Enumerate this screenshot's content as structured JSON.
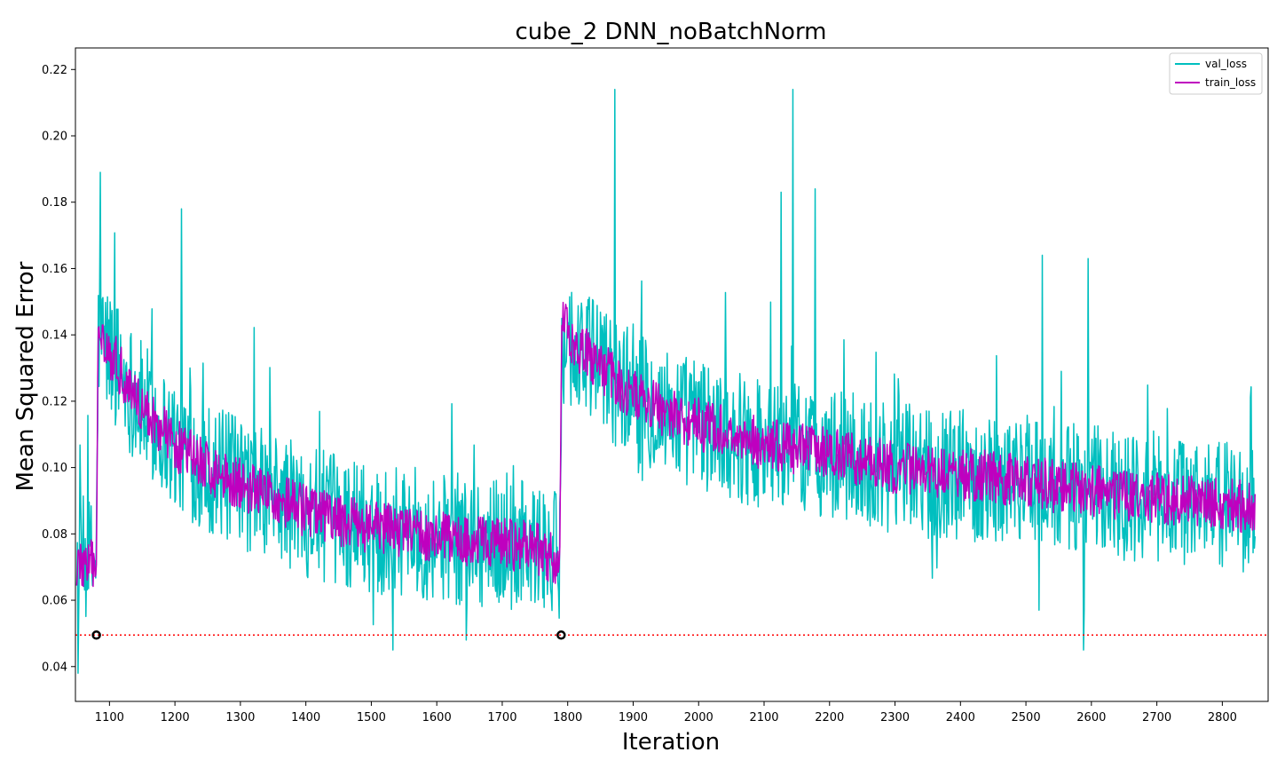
{
  "chart_data": {
    "type": "line",
    "title": "cube_2 DNN_noBatchNorm",
    "xlabel": "Iteration",
    "ylabel": "Mean Squared Error",
    "xlim": [
      1048,
      2870
    ],
    "ylim": [
      0.0295,
      0.2265
    ],
    "xticks": [
      1100,
      1200,
      1300,
      1400,
      1500,
      1600,
      1700,
      1800,
      1900,
      2000,
      2100,
      2200,
      2300,
      2400,
      2500,
      2600,
      2700,
      2800
    ],
    "yticks": [
      0.04,
      0.06,
      0.08,
      0.1,
      0.12,
      0.14,
      0.16,
      0.18,
      0.2,
      0.22
    ],
    "ytick_labels": [
      "0.04",
      "0.06",
      "0.08",
      "0.10",
      "0.12",
      "0.14",
      "0.16",
      "0.18",
      "0.20",
      "0.22"
    ],
    "legend_position": "top-right",
    "grid": false,
    "series": [
      {
        "name": "val_loss",
        "color": "#00bfbf",
        "x": [
          1050,
          1080,
          1083,
          1100,
          1150,
          1200,
          1250,
          1300,
          1350,
          1400,
          1450,
          1500,
          1550,
          1600,
          1650,
          1700,
          1750,
          1788,
          1791,
          1800,
          1850,
          1900,
          1950,
          2000,
          2050,
          2100,
          2150,
          2200,
          2250,
          2300,
          2350,
          2400,
          2450,
          2500,
          2550,
          2600,
          2650,
          2700,
          2750,
          2800,
          2850
        ],
        "y": [
          0.072,
          0.071,
          0.14,
          0.135,
          0.118,
          0.107,
          0.1,
          0.095,
          0.091,
          0.087,
          0.084,
          0.082,
          0.081,
          0.079,
          0.078,
          0.077,
          0.076,
          0.072,
          0.14,
          0.138,
          0.13,
          0.122,
          0.117,
          0.113,
          0.11,
          0.107,
          0.106,
          0.104,
          0.102,
          0.1,
          0.099,
          0.098,
          0.097,
          0.096,
          0.094,
          0.093,
          0.092,
          0.091,
          0.09,
          0.089,
          0.088
        ],
        "noise_amplitude": 0.02,
        "peaks": [
          {
            "x": 1086,
            "y": 0.189
          },
          {
            "x": 1210,
            "y": 0.178
          },
          {
            "x": 1872,
            "y": 0.214
          },
          {
            "x": 2144,
            "y": 0.214
          },
          {
            "x": 2178,
            "y": 0.184
          },
          {
            "x": 2126,
            "y": 0.183
          },
          {
            "x": 2525,
            "y": 0.164
          },
          {
            "x": 2595,
            "y": 0.163
          }
        ],
        "dips": [
          {
            "x": 1052,
            "y": 0.038
          },
          {
            "x": 1533,
            "y": 0.045
          },
          {
            "x": 1645,
            "y": 0.048
          },
          {
            "x": 2588,
            "y": 0.045
          },
          {
            "x": 2520,
            "y": 0.057
          }
        ]
      },
      {
        "name": "train_loss",
        "color": "#bf00bf",
        "x": [
          1050,
          1080,
          1083,
          1100,
          1150,
          1200,
          1250,
          1300,
          1350,
          1400,
          1450,
          1500,
          1550,
          1600,
          1650,
          1700,
          1750,
          1788,
          1791,
          1800,
          1850,
          1900,
          1950,
          2000,
          2050,
          2100,
          2150,
          2200,
          2250,
          2300,
          2350,
          2400,
          2450,
          2500,
          2550,
          2600,
          2650,
          2700,
          2750,
          2800,
          2850
        ],
        "y": [
          0.071,
          0.07,
          0.145,
          0.135,
          0.118,
          0.107,
          0.1,
          0.095,
          0.091,
          0.087,
          0.084,
          0.082,
          0.081,
          0.079,
          0.078,
          0.077,
          0.076,
          0.071,
          0.145,
          0.14,
          0.13,
          0.122,
          0.117,
          0.113,
          0.11,
          0.107,
          0.106,
          0.104,
          0.102,
          0.1,
          0.099,
          0.098,
          0.097,
          0.096,
          0.094,
          0.093,
          0.092,
          0.091,
          0.09,
          0.089,
          0.088
        ],
        "noise_amplitude": 0.008
      }
    ],
    "reference_line": {
      "y": 0.0495,
      "color": "#ff0000",
      "style": "dotted"
    },
    "markers": [
      {
        "x": 1080,
        "y": 0.0495
      },
      {
        "x": 1790,
        "y": 0.0495
      }
    ]
  }
}
